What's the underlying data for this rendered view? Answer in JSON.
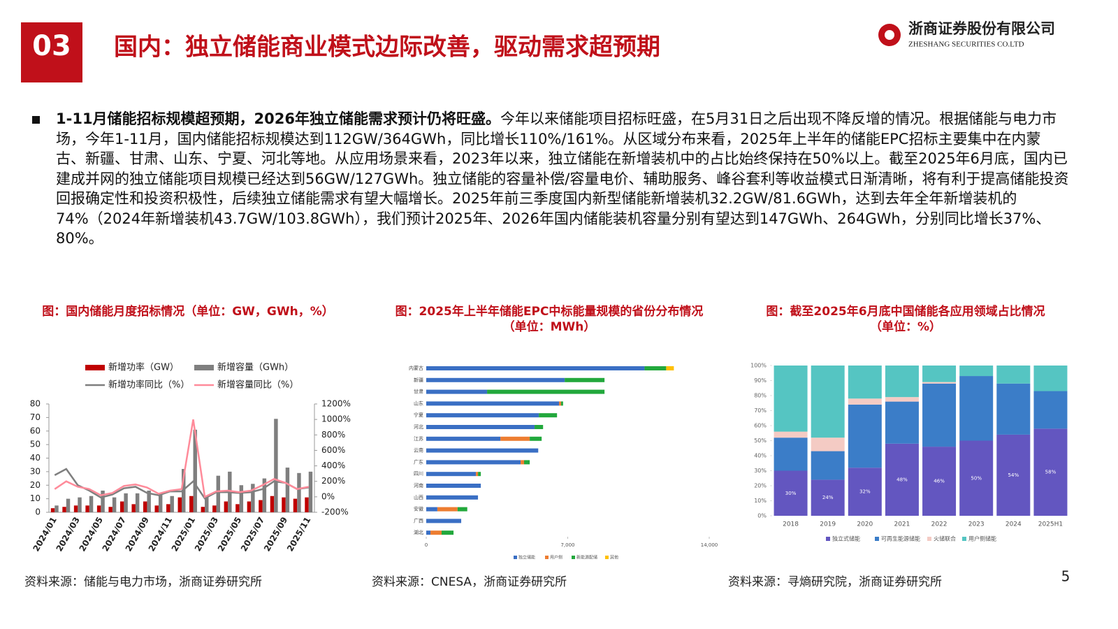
{
  "header": {
    "section": "03",
    "title": "国内：独立储能商业模式边际改善，驱动需求超预期",
    "company": "浙商证券股份有限公司",
    "company_en": "ZHESHANG SECURITIES CO.LTD"
  },
  "body": {
    "lead": "1-11月储能招标规模超预期，2026年独立储能需求预计仍将旺盛。",
    "text": "今年以来储能项目招标旺盛，在5月31日之后出现不降反增的情况。根据储能与电力市场，今年1-11月，国内储能招标规模达到112GW/364GWh，同比增长110%/161%。从区域分布来看，2025年上半年的储能EPC招标主要集中在内蒙古、新疆、甘肃、山东、宁夏、河北等地。从应用场景来看，2023年以来，独立储能在新增装机中的占比始终保持在50%以上。截至2025年6月底，国内已建成并网的独立储能项目规模已经达到56GW/127GWh。独立储能的容量补偿/容量电价、辅助服务、峰谷套利等收益模式日渐清晰，将有利于提高储能投资回报确定性和投资积极性，后续独立储能需求有望大幅增长。2025年前三季度国内新型储能新增装机32.2GW/81.6GWh，达到去年全年新增装机的74%（2024年新增装机43.7GW/103.8GWh），我们预计2025年、2026年国内储能装机容量分别有望达到147GWh、264GWh，分别同比增长37%、80%。"
  },
  "page_number": "5",
  "chart_data": [
    {
      "type": "combo",
      "title": "图：国内储能月度招标情况（单位：GW，GWh，%）",
      "source": "资料来源：储能与电力市场，浙商证券研究所",
      "categories": [
        "2024/01",
        null,
        "2024/03",
        null,
        "2024/05",
        null,
        "2024/07",
        null,
        "2024/09",
        null,
        "2024/11",
        null,
        "2025/01",
        null,
        "2025/03",
        null,
        "2025/05",
        null,
        "2025/07",
        null,
        "2025/09",
        null,
        "2025/11"
      ],
      "series": [
        {
          "name": "新增功率（GW）",
          "type": "bar",
          "color": "#c00000",
          "values": [
            3,
            4,
            5,
            5,
            5,
            4,
            8,
            6,
            8,
            5,
            6,
            11,
            12,
            4,
            5,
            8,
            6,
            8,
            9,
            12,
            11,
            10,
            11
          ]
        },
        {
          "name": "新增容量（GWh）",
          "type": "bar",
          "color": "#7f7f7f",
          "values": [
            5,
            10,
            11,
            12,
            16,
            11,
            14,
            14,
            16,
            14,
            12,
            32,
            61,
            12,
            27,
            30,
            20,
            21,
            25,
            69,
            33,
            29,
            30
          ]
        },
        {
          "name": "新增功率同比（%）",
          "type": "line",
          "axis": "y2",
          "color": "#7f7f7f",
          "values": [
            280,
            360,
            150,
            80,
            -10,
            30,
            110,
            130,
            50,
            20,
            70,
            70,
            200,
            -20,
            60,
            60,
            50,
            60,
            100,
            200,
            180,
            100,
            120
          ]
        },
        {
          "name": "新增容量同比（%）",
          "type": "line",
          "axis": "y2",
          "color": "#ff8b9a",
          "values": [
            100,
            200,
            130,
            100,
            20,
            50,
            140,
            160,
            120,
            40,
            80,
            100,
            1000,
            0,
            70,
            80,
            60,
            80,
            150,
            230,
            180,
            100,
            130
          ]
        }
      ],
      "ylim": [
        0,
        80
      ],
      "yticks": [
        0,
        10,
        20,
        30,
        40,
        50,
        60,
        70,
        80
      ],
      "y2lim": [
        -200,
        1200
      ],
      "y2ticks": [
        {
          "value": -200,
          "label": "-200%"
        },
        {
          "value": 0,
          "label": "0%"
        },
        {
          "value": 200,
          "label": "200%"
        },
        {
          "value": 400,
          "label": "400%"
        },
        {
          "value": 600,
          "label": "600%"
        },
        {
          "value": 800,
          "label": "800%"
        },
        {
          "value": 1000,
          "label": "1000%"
        },
        {
          "value": 1200,
          "label": "1200%"
        }
      ]
    },
    {
      "type": "hbar",
      "title": "图：2025年上半年储能EPC中标能量规模的省份分布情况",
      "subtitle": "（单位：MWh）",
      "source": "资料来源：CNESA，浙商证券研究所",
      "stacked": true,
      "categories": [
        "内蒙古",
        "新疆",
        "甘肃",
        "山东",
        "宁夏",
        "河北",
        "江苏",
        "云南",
        "广东",
        "四川",
        "河南",
        "山西",
        "安徽",
        "广西",
        "湖北"
      ],
      "series": [
        {
          "name": "独立储能",
          "color": "#3a6fc4",
          "values": [
            10800,
            6850,
            3010,
            6570,
            5570,
            5360,
            3670,
            5540,
            4670,
            2460,
            2700,
            2560,
            550,
            1730,
            210
          ]
        },
        {
          "name": "用户侧",
          "color": "#ed7d31",
          "values": [
            0,
            0,
            0,
            100,
            0,
            0,
            1450,
            0,
            170,
            100,
            0,
            0,
            1000,
            0,
            550
          ]
        },
        {
          "name": "新能源配储",
          "color": "#22a83c",
          "values": [
            1070,
            1970,
            5810,
            100,
            900,
            420,
            590,
            0,
            280,
            140,
            0,
            0,
            480,
            0,
            590
          ]
        },
        {
          "name": "其他",
          "color": "#ffc000",
          "values": [
            380,
            0,
            0,
            0,
            0,
            0,
            0,
            0,
            0,
            0,
            0,
            0,
            0,
            0,
            0
          ]
        }
      ],
      "xlim": [
        0,
        14000
      ],
      "xticks": [
        0,
        {
          "value": 7000,
          "label": "7,000"
        },
        {
          "value": 14000,
          "label": "14,000"
        }
      ]
    },
    {
      "type": "stackedbar",
      "title": "图：截至2025年6月底中国储能各应用领域占比情况",
      "subtitle": "（单位：%）",
      "source": "资料来源：寻熵研究院，浙商证券研究所",
      "categories": [
        "2018",
        "2019",
        "2020",
        "2021",
        "2022",
        "2023",
        "2024",
        "2025H1"
      ],
      "series": [
        {
          "name": "独立式储能",
          "color": "#6356c0",
          "values": [
            30,
            24,
            32,
            48,
            46,
            50,
            54,
            58
          ],
          "value_labels": [
            "30%",
            "24%",
            "32%",
            "48%",
            "46%",
            "50%",
            "54%",
            "58%"
          ]
        },
        {
          "name": "可再生能源储能",
          "color": "#3b7dc8",
          "values": [
            22,
            19,
            42,
            28,
            42,
            43,
            34,
            25
          ]
        },
        {
          "name": "火储联合",
          "color": "#f4cbc4",
          "values": [
            4,
            9,
            4,
            3,
            1,
            0,
            0,
            0
          ]
        },
        {
          "name": "用户侧储能",
          "color": "#55c5c2",
          "values": [
            44,
            48,
            22,
            21,
            11,
            7,
            12,
            17
          ]
        }
      ],
      "ylim": [
        0,
        100
      ],
      "yticks": [
        {
          "value": 0,
          "label": "0%"
        },
        {
          "value": 10,
          "label": "10%"
        },
        {
          "value": 20,
          "label": "20%"
        },
        {
          "value": 30,
          "label": "30%"
        },
        {
          "value": 40,
          "label": "40%"
        },
        {
          "value": 50,
          "label": "50%"
        },
        {
          "value": 60,
          "label": "60%"
        },
        {
          "value": 70,
          "label": "70%"
        },
        {
          "value": 80,
          "label": "80%"
        },
        {
          "value": 90,
          "label": "90%"
        },
        {
          "value": 100,
          "label": "100%"
        }
      ]
    }
  ]
}
